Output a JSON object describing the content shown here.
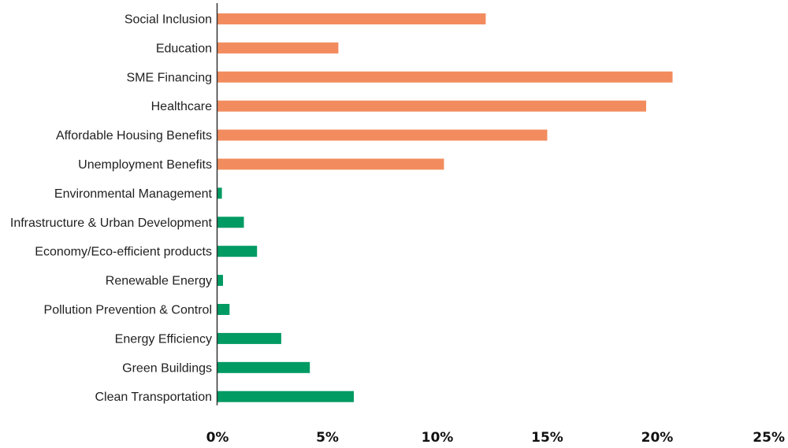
{
  "chart_data": {
    "type": "bar",
    "orientation": "horizontal",
    "title": "",
    "xlabel": "",
    "ylabel": "",
    "xlim": [
      0,
      25
    ],
    "x_ticks": [
      "0%",
      "5%",
      "10%",
      "15%",
      "20%",
      "25%"
    ],
    "x_tick_values": [
      0,
      5,
      10,
      15,
      20,
      25
    ],
    "grid": false,
    "legend": "none",
    "categories": [
      "Social Inclusion",
      "Education",
      "SME Financing",
      "Healthcare",
      "Affordable Housing Benefits",
      "Unemployment Benefits",
      "Environmental Management",
      "Infrastructure & Urban Development",
      "Economy/Eco-efficient products",
      "Renewable Energy",
      "Pollution Prevention & Control",
      "Energy Efficiency",
      "Green Buildings",
      "Clean Transportation"
    ],
    "values": [
      12.2,
      5.5,
      20.7,
      19.5,
      15.0,
      10.3,
      0.2,
      1.2,
      1.8,
      0.25,
      0.55,
      2.9,
      4.2,
      6.2
    ],
    "colors": [
      "#f28c5e",
      "#f28c5e",
      "#f28c5e",
      "#f28c5e",
      "#f28c5e",
      "#f28c5e",
      "#009a63",
      "#009a63",
      "#009a63",
      "#009a63",
      "#009a63",
      "#009a63",
      "#009a63",
      "#009a63"
    ]
  }
}
